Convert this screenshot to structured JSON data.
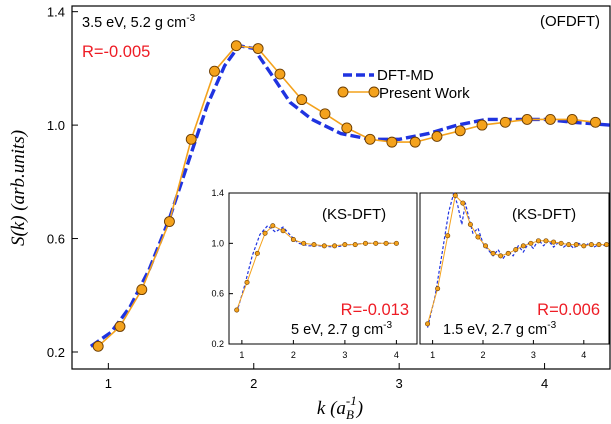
{
  "colors": {
    "dft_md": "#1f33e0",
    "present": "#f4a21c",
    "present_edge": "#6b3c00",
    "r_text": "#ee1c25"
  },
  "axes": {
    "xlabel": "k (a",
    "xlabel_sub": "B",
    "xlabel_sup": "-1",
    "xlabel_close": ")",
    "ylabel": "S(k)  (arb.units)"
  },
  "chart_data": [
    {
      "id": "main",
      "type": "line",
      "method_tag": "(OFDFT)",
      "condition": "3.5 eV, 5.2 g cm",
      "condition_sup": "-3",
      "r_text": "R=-0.005",
      "xlim": [
        0.75,
        4.45
      ],
      "ylim": [
        0.14,
        1.42
      ],
      "xticks": [
        "1",
        "2",
        "3",
        "4"
      ],
      "yticks": [
        "0.2",
        "0.6",
        "1.0",
        "1.4"
      ],
      "legend": {
        "position": "upper-center",
        "entries": [
          "DFT-MD",
          "Present Work"
        ]
      },
      "series": [
        {
          "name": "DFT-MD",
          "style": "dashed",
          "x": [
            0.88,
            1.02,
            1.15,
            1.28,
            1.42,
            1.55,
            1.68,
            1.8,
            1.9,
            2.0,
            2.12,
            2.25,
            2.4,
            2.6,
            2.8,
            3.0,
            3.2,
            3.4,
            3.6,
            3.8,
            4.0,
            4.2,
            4.45
          ],
          "y": [
            0.22,
            0.27,
            0.36,
            0.49,
            0.67,
            0.87,
            1.07,
            1.21,
            1.28,
            1.27,
            1.18,
            1.08,
            1.02,
            0.97,
            0.95,
            0.95,
            0.97,
            1.0,
            1.02,
            1.02,
            1.02,
            1.01,
            1.0
          ]
        },
        {
          "name": "Present Work",
          "style": "line-markers",
          "x": [
            0.93,
            1.08,
            1.23,
            1.42,
            1.57,
            1.73,
            1.88,
            2.03,
            2.18,
            2.33,
            2.49,
            2.64,
            2.8,
            2.95,
            3.11,
            3.26,
            3.42,
            3.57,
            3.73,
            3.88,
            4.04,
            4.19,
            4.35
          ],
          "y": [
            0.22,
            0.29,
            0.42,
            0.66,
            0.95,
            1.19,
            1.28,
            1.27,
            1.18,
            1.09,
            1.04,
            0.99,
            0.95,
            0.94,
            0.94,
            0.96,
            0.98,
            1.0,
            1.01,
            1.02,
            1.02,
            1.02,
            1.01
          ]
        }
      ]
    },
    {
      "id": "inset1",
      "type": "line",
      "method_tag": "(KS-DFT)",
      "condition": "5 eV, 2.7 g cm",
      "condition_sup": "-3",
      "r_text": "R=-0.013",
      "xlim": [
        0.75,
        4.4
      ],
      "ylim": [
        0.2,
        1.4
      ],
      "xticks": [
        "1",
        "2",
        "3",
        "4"
      ],
      "yticks": [
        "0.2",
        "0.6",
        "1.0",
        "1.4"
      ],
      "series": [
        {
          "name": "",
          "style": "dashed",
          "x": [
            0.9,
            1.05,
            1.2,
            1.35,
            1.5,
            1.65,
            1.8,
            1.95,
            2.1,
            2.3,
            2.5,
            2.8,
            3.1,
            3.4,
            3.7,
            4.0
          ],
          "y": [
            0.45,
            0.66,
            0.9,
            1.07,
            1.14,
            1.09,
            1.13,
            1.06,
            1.0,
            0.98,
            0.98,
            0.97,
            0.99,
            1.0,
            1.0,
            1.0
          ]
        },
        {
          "name": "",
          "style": "line-markers",
          "x": [
            0.9,
            1.1,
            1.3,
            1.45,
            1.6,
            1.8,
            2.0,
            2.2,
            2.4,
            2.6,
            2.8,
            3.0,
            3.2,
            3.4,
            3.6,
            3.8,
            4.0
          ],
          "y": [
            0.47,
            0.69,
            0.92,
            1.08,
            1.14,
            1.1,
            1.03,
            1.0,
            0.99,
            0.98,
            0.98,
            0.99,
            0.99,
            1.0,
            1.0,
            1.0,
            1.0
          ]
        }
      ]
    },
    {
      "id": "inset2",
      "type": "line",
      "method_tag": "(KS-DFT)",
      "condition": "1.5 eV, 2.7 g cm",
      "condition_sup": "-3",
      "r_text": "R=0.006",
      "xlim": [
        0.75,
        4.5
      ],
      "ylim": [
        0.2,
        1.4
      ],
      "xticks": [
        "1",
        "2",
        "3",
        "4"
      ],
      "yticks": [],
      "series": [
        {
          "name": "",
          "style": "dashed",
          "x": [
            0.9,
            1.05,
            1.2,
            1.32,
            1.42,
            1.5,
            1.58,
            1.65,
            1.72,
            1.8,
            1.9,
            2.0,
            2.1,
            2.2,
            2.3,
            2.4,
            2.5,
            2.6,
            2.7,
            2.8,
            2.9,
            3.0,
            3.1,
            3.2,
            3.3,
            3.4,
            3.5,
            3.6,
            3.7,
            3.8,
            3.9,
            4.0,
            4.1,
            4.2,
            4.3,
            4.45
          ],
          "y": [
            0.33,
            0.58,
            0.95,
            1.25,
            1.4,
            1.3,
            1.15,
            1.32,
            1.2,
            1.08,
            1.12,
            1.0,
            0.95,
            0.9,
            0.95,
            0.88,
            0.94,
            0.9,
            0.98,
            0.93,
            1.0,
            0.96,
            1.03,
            0.98,
            1.02,
            0.97,
            1.01,
            0.97,
            1.0,
            0.96,
            1.0,
            0.97,
            1.0,
            0.97,
            0.99,
            0.98
          ]
        },
        {
          "name": "",
          "style": "line-markers",
          "x": [
            0.9,
            1.1,
            1.3,
            1.45,
            1.6,
            1.75,
            1.9,
            2.05,
            2.2,
            2.35,
            2.5,
            2.65,
            2.8,
            2.95,
            3.1,
            3.25,
            3.4,
            3.55,
            3.7,
            3.85,
            4.0,
            4.15,
            4.3,
            4.45
          ],
          "y": [
            0.36,
            0.64,
            1.06,
            1.38,
            1.32,
            1.15,
            1.05,
            0.98,
            0.92,
            0.9,
            0.92,
            0.95,
            0.98,
            1.0,
            1.02,
            1.02,
            1.01,
            1.0,
            0.99,
            0.99,
            0.98,
            0.99,
            0.99,
            0.99
          ]
        }
      ]
    }
  ]
}
